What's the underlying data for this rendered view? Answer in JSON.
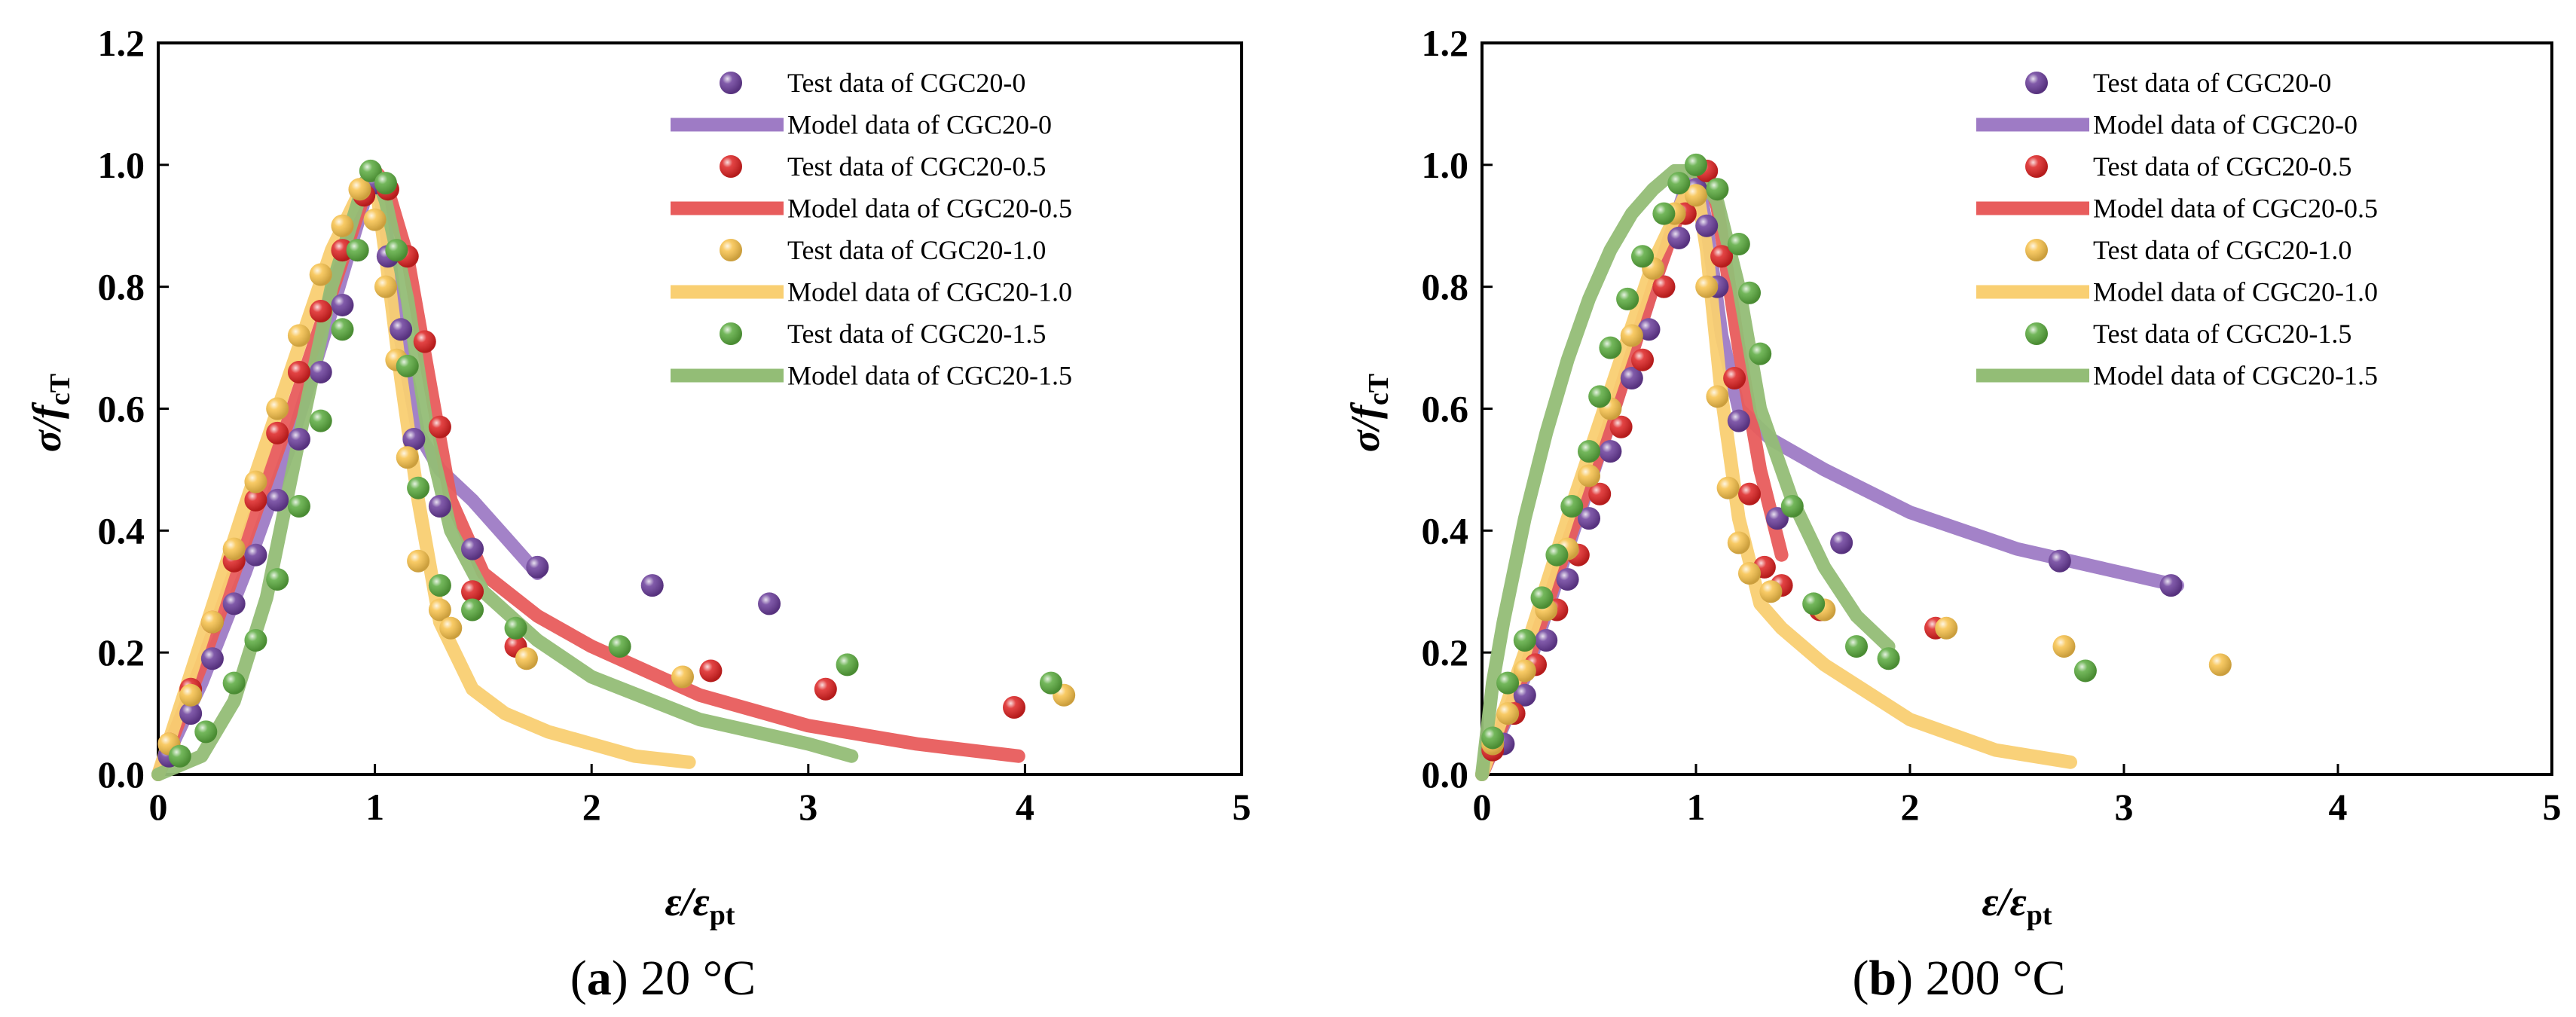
{
  "colors": {
    "CGC20-0": "#6a3d9a",
    "CGC20-0.5": "#dd2222",
    "CGC20-1.0": "#f7c14a",
    "CGC20-1.5": "#5aaa3e",
    "model_CGC20-0": "#9e7bc5",
    "model_CGC20-0.5": "#e85c5c",
    "model_CGC20-1.0": "#f9cf72",
    "model_CGC20-1.5": "#93bd76"
  },
  "chart_data": [
    {
      "type": "scatter",
      "panel_label": "a",
      "caption_text": " 20 °C",
      "xlabel": "ε/ε",
      "xlabel_sub": "pt",
      "ylabel": "σ/f",
      "ylabel_sub": "cT",
      "xlim": [
        0,
        5
      ],
      "ylim": [
        0,
        1.2
      ],
      "x_ticks": [
        "0",
        "1",
        "2",
        "3",
        "4",
        "5"
      ],
      "y_ticks": [
        "0.0",
        "0.2",
        "0.4",
        "0.6",
        "0.8",
        "1.0",
        "1.2"
      ],
      "legend": [
        {
          "label": "Test data of CGC20-0",
          "kind": "marker",
          "color_key": "CGC20-0"
        },
        {
          "label": "Model data of CGC20-0",
          "kind": "line",
          "color_key": "model_CGC20-0"
        },
        {
          "label": "Test data of CGC20-0.5",
          "kind": "marker",
          "color_key": "CGC20-0.5"
        },
        {
          "label": "Model data of CGC20-0.5",
          "kind": "line",
          "color_key": "model_CGC20-0.5"
        },
        {
          "label": "Test data of CGC20-1.0",
          "kind": "marker",
          "color_key": "CGC20-1.0"
        },
        {
          "label": "Model data of CGC20-1.0",
          "kind": "line",
          "color_key": "model_CGC20-1.0"
        },
        {
          "label": "Test data of CGC20-1.5",
          "kind": "marker",
          "color_key": "CGC20-1.5"
        },
        {
          "label": "Model data of CGC20-1.5",
          "kind": "line",
          "color_key": "model_CGC20-1.5"
        }
      ],
      "series": [
        {
          "name": "Model data of CGC20-0",
          "kind": "line",
          "color_key": "model_CGC20-0",
          "x": [
            0,
            0.2,
            0.4,
            0.6,
            0.8,
            0.95,
            1.0,
            1.05,
            1.1,
            1.2,
            1.3,
            1.45,
            1.6,
            1.75
          ],
          "y": [
            0,
            0.15,
            0.33,
            0.53,
            0.76,
            0.94,
            0.99,
            0.9,
            0.75,
            0.56,
            0.5,
            0.45,
            0.39,
            0.33
          ]
        },
        {
          "name": "Model data of CGC20-0.5",
          "kind": "line",
          "color_key": "model_CGC20-0.5",
          "x": [
            0,
            0.2,
            0.4,
            0.6,
            0.8,
            0.95,
            1.0,
            1.05,
            1.15,
            1.25,
            1.35,
            1.5,
            1.75,
            2.0,
            2.5,
            3.0,
            3.5,
            3.97
          ],
          "y": [
            0,
            0.18,
            0.38,
            0.58,
            0.79,
            0.95,
            0.99,
            0.97,
            0.85,
            0.65,
            0.45,
            0.33,
            0.26,
            0.21,
            0.13,
            0.08,
            0.05,
            0.03
          ]
        },
        {
          "name": "Model data of CGC20-1.0",
          "kind": "line",
          "color_key": "model_CGC20-1.0",
          "x": [
            0,
            0.2,
            0.4,
            0.6,
            0.8,
            0.95,
            1.0,
            1.05,
            1.12,
            1.2,
            1.3,
            1.45,
            1.6,
            1.8,
            2.0,
            2.2,
            2.45
          ],
          "y": [
            0,
            0.22,
            0.44,
            0.65,
            0.86,
            0.97,
            0.98,
            0.85,
            0.65,
            0.45,
            0.25,
            0.14,
            0.1,
            0.07,
            0.05,
            0.03,
            0.02
          ]
        },
        {
          "name": "Model data of CGC20-1.5",
          "kind": "line",
          "color_key": "model_CGC20-1.5",
          "x": [
            0,
            0.2,
            0.35,
            0.5,
            0.65,
            0.8,
            0.95,
            1.0,
            1.05,
            1.15,
            1.25,
            1.35,
            1.5,
            1.75,
            2.0,
            2.5,
            3.0,
            3.2
          ],
          "y": [
            0,
            0.03,
            0.12,
            0.29,
            0.55,
            0.8,
            0.97,
            0.99,
            0.94,
            0.78,
            0.55,
            0.4,
            0.3,
            0.22,
            0.16,
            0.09,
            0.05,
            0.03
          ]
        },
        {
          "name": "Test data of CGC20-0",
          "kind": "scatter",
          "color_key": "CGC20-0",
          "x": [
            0.05,
            0.15,
            0.25,
            0.35,
            0.45,
            0.55,
            0.65,
            0.75,
            0.85,
            0.92,
            1.0,
            1.06,
            1.12,
            1.18,
            1.3,
            1.45,
            1.75,
            2.28,
            2.82
          ],
          "y": [
            0.03,
            0.1,
            0.19,
            0.28,
            0.36,
            0.45,
            0.55,
            0.66,
            0.77,
            0.86,
            0.97,
            0.85,
            0.73,
            0.55,
            0.44,
            0.37,
            0.34,
            0.31,
            0.28
          ]
        },
        {
          "name": "Test data of CGC20-0.5",
          "kind": "scatter",
          "color_key": "CGC20-0.5",
          "x": [
            0.05,
            0.15,
            0.25,
            0.35,
            0.45,
            0.55,
            0.65,
            0.75,
            0.85,
            0.95,
            1.06,
            1.15,
            1.23,
            1.3,
            1.45,
            1.65,
            2.55,
            3.08,
            3.95
          ],
          "y": [
            0.05,
            0.14,
            0.25,
            0.35,
            0.45,
            0.56,
            0.66,
            0.76,
            0.86,
            0.95,
            0.96,
            0.85,
            0.71,
            0.57,
            0.3,
            0.21,
            0.17,
            0.14,
            0.11
          ]
        },
        {
          "name": "Test data of CGC20-1.0",
          "kind": "scatter",
          "color_key": "CGC20-1.0",
          "x": [
            0.05,
            0.15,
            0.25,
            0.35,
            0.45,
            0.55,
            0.65,
            0.75,
            0.85,
            0.93,
            1.0,
            1.05,
            1.1,
            1.15,
            1.2,
            1.3,
            1.35,
            1.7,
            2.42,
            4.18
          ],
          "y": [
            0.05,
            0.13,
            0.25,
            0.37,
            0.48,
            0.6,
            0.72,
            0.82,
            0.9,
            0.96,
            0.91,
            0.8,
            0.68,
            0.52,
            0.35,
            0.27,
            0.24,
            0.19,
            0.16,
            0.13
          ]
        },
        {
          "name": "Test data of CGC20-1.5",
          "kind": "scatter",
          "color_key": "CGC20-1.5",
          "x": [
            0.1,
            0.22,
            0.35,
            0.45,
            0.55,
            0.65,
            0.75,
            0.85,
            0.92,
            0.98,
            1.05,
            1.1,
            1.15,
            1.2,
            1.3,
            1.45,
            1.65,
            2.13,
            3.18,
            4.12
          ],
          "y": [
            0.03,
            0.07,
            0.15,
            0.22,
            0.32,
            0.44,
            0.58,
            0.73,
            0.86,
            0.99,
            0.97,
            0.86,
            0.67,
            0.47,
            0.31,
            0.27,
            0.24,
            0.21,
            0.18,
            0.15
          ]
        }
      ]
    },
    {
      "type": "scatter",
      "panel_label": "b",
      "caption_text": " 200 °C",
      "xlabel": "ε/ε",
      "xlabel_sub": "pt",
      "ylabel": "σ/f",
      "ylabel_sub": "cT",
      "xlim": [
        0,
        5
      ],
      "ylim": [
        0,
        1.2
      ],
      "x_ticks": [
        "0",
        "1",
        "2",
        "3",
        "4",
        "5"
      ],
      "y_ticks": [
        "0.0",
        "0.2",
        "0.4",
        "0.6",
        "0.8",
        "1.0",
        "1.2"
      ],
      "legend": [
        {
          "label": "Test data of CGC20-0",
          "kind": "marker",
          "color_key": "CGC20-0"
        },
        {
          "label": "Model data of CGC20-0",
          "kind": "line",
          "color_key": "model_CGC20-0"
        },
        {
          "label": "Test data of CGC20-0.5",
          "kind": "marker",
          "color_key": "CGC20-0.5"
        },
        {
          "label": "Model data of CGC20-0.5",
          "kind": "line",
          "color_key": "model_CGC20-0.5"
        },
        {
          "label": "Test data of CGC20-1.0",
          "kind": "marker",
          "color_key": "CGC20-1.0"
        },
        {
          "label": "Model data of CGC20-1.0",
          "kind": "line",
          "color_key": "model_CGC20-1.0"
        },
        {
          "label": "Test data of CGC20-1.5",
          "kind": "marker",
          "color_key": "CGC20-1.5"
        },
        {
          "label": "Model data of CGC20-1.5",
          "kind": "line",
          "color_key": "model_CGC20-1.5"
        }
      ],
      "series": [
        {
          "name": "Model data of CGC20-0",
          "kind": "line",
          "color_key": "model_CGC20-0",
          "x": [
            0,
            0.2,
            0.4,
            0.6,
            0.8,
            0.95,
            1.0,
            1.05,
            1.12,
            1.2,
            1.35,
            1.6,
            2.0,
            2.5,
            3.0,
            3.25
          ],
          "y": [
            0,
            0.16,
            0.37,
            0.58,
            0.8,
            0.96,
            0.99,
            0.9,
            0.72,
            0.6,
            0.55,
            0.5,
            0.43,
            0.37,
            0.33,
            0.31
          ]
        },
        {
          "name": "Model data of CGC20-0.5",
          "kind": "line",
          "color_key": "model_CGC20-0.5",
          "x": [
            0,
            0.2,
            0.4,
            0.6,
            0.8,
            0.95,
            1.05,
            1.1,
            1.2,
            1.3,
            1.4
          ],
          "y": [
            0,
            0.17,
            0.38,
            0.58,
            0.8,
            0.95,
            0.99,
            0.93,
            0.7,
            0.5,
            0.36
          ]
        },
        {
          "name": "Model data of CGC20-1.0",
          "kind": "line",
          "color_key": "model_CGC20-1.0",
          "x": [
            0,
            0.2,
            0.4,
            0.6,
            0.8,
            0.95,
            1.0,
            1.05,
            1.12,
            1.2,
            1.3,
            1.4,
            1.6,
            2.0,
            2.4,
            2.75
          ],
          "y": [
            0,
            0.2,
            0.42,
            0.63,
            0.84,
            0.95,
            0.97,
            0.86,
            0.62,
            0.42,
            0.28,
            0.24,
            0.18,
            0.09,
            0.04,
            0.02
          ]
        },
        {
          "name": "Model data of CGC20-1.5",
          "kind": "line",
          "color_key": "model_CGC20-1.5",
          "x": [
            0,
            0.05,
            0.1,
            0.2,
            0.3,
            0.4,
            0.5,
            0.6,
            0.7,
            0.8,
            0.9,
            1.0,
            1.1,
            1.2,
            1.3,
            1.45,
            1.6,
            1.75,
            1.9
          ],
          "y": [
            0,
            0.15,
            0.25,
            0.42,
            0.56,
            0.68,
            0.78,
            0.86,
            0.92,
            0.96,
            0.99,
            0.99,
            0.94,
            0.8,
            0.6,
            0.45,
            0.34,
            0.26,
            0.21
          ]
        },
        {
          "name": "Test data of CGC20-0",
          "kind": "scatter",
          "color_key": "CGC20-0",
          "x": [
            0.1,
            0.2,
            0.3,
            0.4,
            0.5,
            0.6,
            0.7,
            0.78,
            0.85,
            0.92,
            1.0,
            1.05,
            1.1,
            1.2,
            1.38,
            1.68,
            2.7,
            3.22
          ],
          "y": [
            0.05,
            0.13,
            0.22,
            0.32,
            0.42,
            0.53,
            0.65,
            0.73,
            0.8,
            0.88,
            0.96,
            0.9,
            0.8,
            0.58,
            0.42,
            0.38,
            0.35,
            0.31
          ]
        },
        {
          "name": "Test data of CGC20-0.5",
          "kind": "scatter",
          "color_key": "CGC20-0.5",
          "x": [
            0.05,
            0.15,
            0.25,
            0.35,
            0.45,
            0.55,
            0.65,
            0.75,
            0.85,
            0.95,
            1.05,
            1.12,
            1.18,
            1.25,
            1.32,
            1.4,
            1.58,
            2.12
          ],
          "y": [
            0.04,
            0.1,
            0.18,
            0.27,
            0.36,
            0.46,
            0.57,
            0.68,
            0.8,
            0.92,
            0.99,
            0.85,
            0.65,
            0.46,
            0.34,
            0.31,
            0.27,
            0.24
          ]
        },
        {
          "name": "Test data of CGC20-1.0",
          "kind": "scatter",
          "color_key": "CGC20-1.0",
          "x": [
            0.05,
            0.12,
            0.2,
            0.3,
            0.4,
            0.5,
            0.6,
            0.7,
            0.8,
            0.9,
            1.0,
            1.05,
            1.1,
            1.15,
            1.2,
            1.25,
            1.35,
            1.6,
            2.17,
            2.72,
            3.45
          ],
          "y": [
            0.05,
            0.1,
            0.17,
            0.27,
            0.37,
            0.49,
            0.6,
            0.72,
            0.83,
            0.92,
            0.95,
            0.8,
            0.62,
            0.47,
            0.38,
            0.33,
            0.3,
            0.27,
            0.24,
            0.21,
            0.18
          ]
        },
        {
          "name": "Test data of CGC20-1.5",
          "kind": "scatter",
          "color_key": "CGC20-1.5",
          "x": [
            0.05,
            0.12,
            0.2,
            0.28,
            0.35,
            0.42,
            0.5,
            0.55,
            0.6,
            0.68,
            0.75,
            0.85,
            0.92,
            1.0,
            1.1,
            1.2,
            1.25,
            1.3,
            1.45,
            1.55,
            1.75,
            1.9,
            2.82
          ],
          "y": [
            0.06,
            0.15,
            0.22,
            0.29,
            0.36,
            0.44,
            0.53,
            0.62,
            0.7,
            0.78,
            0.85,
            0.92,
            0.97,
            1.0,
            0.96,
            0.87,
            0.79,
            0.69,
            0.44,
            0.28,
            0.21,
            0.19,
            0.17
          ]
        }
      ]
    }
  ]
}
